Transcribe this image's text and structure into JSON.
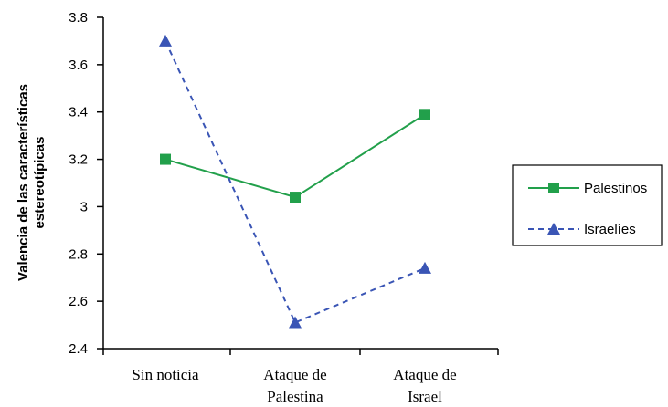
{
  "chart_data": {
    "type": "line",
    "categories": [
      [
        "Sin noticia"
      ],
      [
        "Ataque de",
        "Palestina"
      ],
      [
        "Ataque de",
        "Israel"
      ]
    ],
    "ylabel": [
      "Valencia de las características",
      "estereotípicas"
    ],
    "xlabel": "",
    "ylim": [
      2.4,
      3.8
    ],
    "yticks": [
      "2.4",
      "2.6",
      "2.8",
      "3",
      "3.2",
      "3.4",
      "3.6",
      "3.8"
    ],
    "grid": false,
    "legend_position": "right",
    "series": [
      {
        "name": "Palestinos",
        "values": [
          3.2,
          3.04,
          3.39
        ],
        "color": "#22a04b",
        "marker": "square",
        "dash": "solid"
      },
      {
        "name": "Israelíes",
        "values": [
          3.7,
          2.51,
          2.74
        ],
        "color": "#3a55b5",
        "marker": "triangle",
        "dash": "dashed"
      }
    ]
  }
}
